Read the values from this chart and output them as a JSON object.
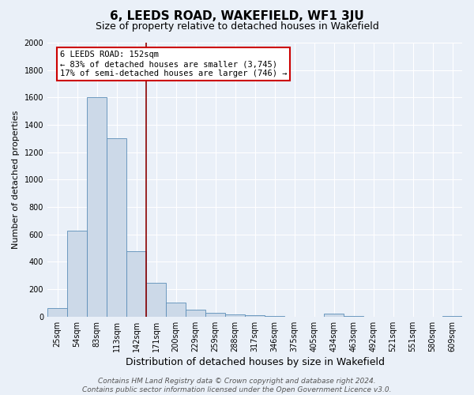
{
  "title": "6, LEEDS ROAD, WAKEFIELD, WF1 3JU",
  "subtitle": "Size of property relative to detached houses in Wakefield",
  "xlabel": "Distribution of detached houses by size in Wakefield",
  "ylabel": "Number of detached properties",
  "bar_color": "#ccd9e8",
  "bar_edge_color": "#5b8db8",
  "background_color": "#eaf0f8",
  "categories": [
    "25sqm",
    "54sqm",
    "83sqm",
    "113sqm",
    "142sqm",
    "171sqm",
    "200sqm",
    "229sqm",
    "259sqm",
    "288sqm",
    "317sqm",
    "346sqm",
    "375sqm",
    "405sqm",
    "434sqm",
    "463sqm",
    "492sqm",
    "521sqm",
    "551sqm",
    "580sqm",
    "609sqm"
  ],
  "values": [
    60,
    630,
    1600,
    1300,
    475,
    245,
    100,
    48,
    25,
    15,
    10,
    5,
    0,
    0,
    20,
    5,
    0,
    0,
    0,
    0,
    5
  ],
  "ylim": [
    0,
    2000
  ],
  "yticks": [
    0,
    200,
    400,
    600,
    800,
    1000,
    1200,
    1400,
    1600,
    1800,
    2000
  ],
  "vline_x": 4.5,
  "vline_color": "#8b0000",
  "annotation_title": "6 LEEDS ROAD: 152sqm",
  "annotation_line1": "← 83% of detached houses are smaller (3,745)",
  "annotation_line2": "17% of semi-detached houses are larger (746) →",
  "annotation_box_color": "#ffffff",
  "annotation_box_edge": "#cc0000",
  "footer_line1": "Contains HM Land Registry data © Crown copyright and database right 2024.",
  "footer_line2": "Contains public sector information licensed under the Open Government Licence v3.0.",
  "title_fontsize": 11,
  "subtitle_fontsize": 9,
  "xlabel_fontsize": 9,
  "ylabel_fontsize": 8,
  "tick_fontsize": 7,
  "footer_fontsize": 6.5
}
